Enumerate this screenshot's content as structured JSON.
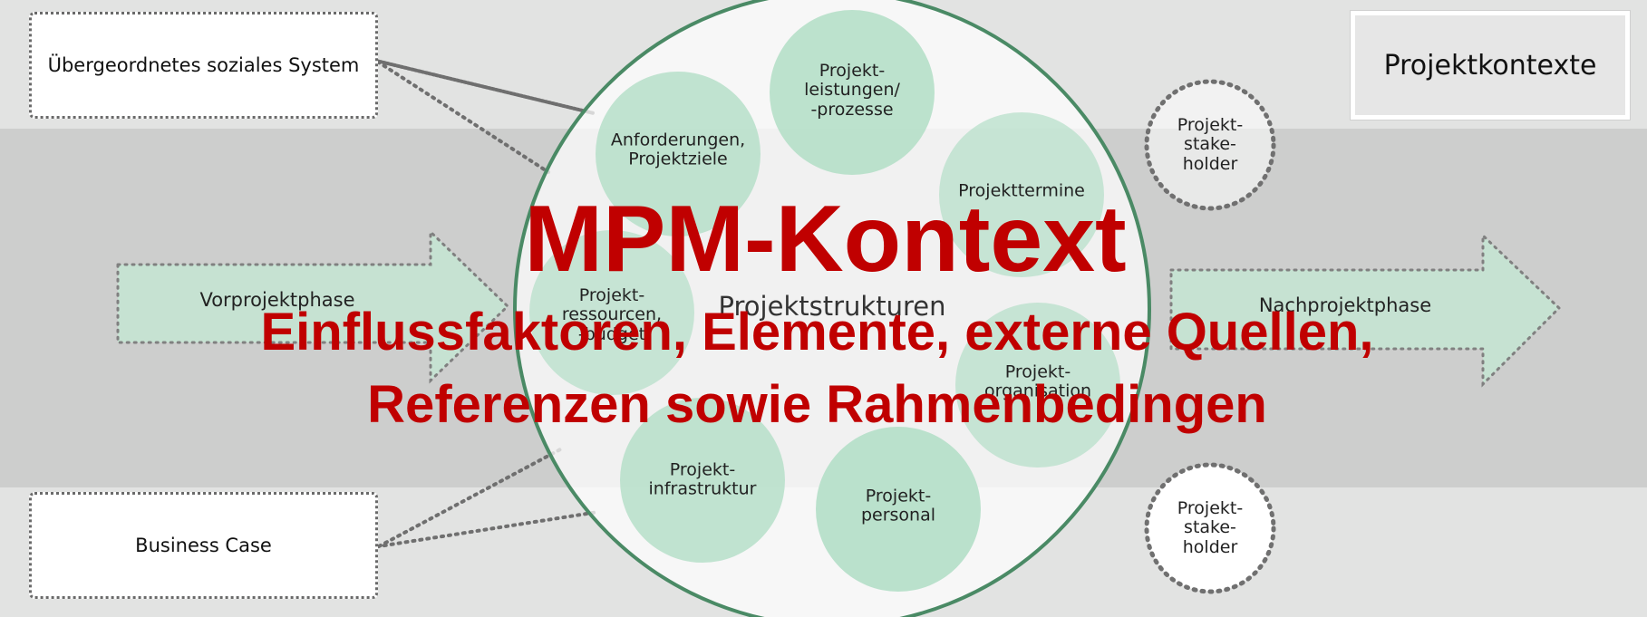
{
  "title": "MPM-Kontext",
  "subtitle_line1": "Einflussfaktoren, Elemente, externe Quellen,",
  "subtitle_line2": "Referenzen sowie Rahmenbedingen",
  "center_label": "Projektstrukturen",
  "context_box": "Projektkontexte",
  "left_top_box": "Übergeordnetes soziales System",
  "left_bottom_box": "Business Case",
  "phases": {
    "pre": "Vorprojektphase",
    "post": "Nachprojektphase"
  },
  "elements": {
    "leistungen": [
      "Projekt-",
      "leistungen/",
      "-prozesse"
    ],
    "anforderungen": [
      "Anforderungen,",
      "Projektziele"
    ],
    "termine": [
      "Projekttermine"
    ],
    "ressourcen": [
      "Projekt-",
      "ressourcen,",
      "-budget"
    ],
    "organisation": [
      "Projekt-",
      "organisation"
    ],
    "infrastruktur": [
      "Projekt-",
      "infrastruktur"
    ],
    "personal": [
      "Projekt-",
      "personal"
    ]
  },
  "stakeholder_top": [
    "Projekt-",
    "stake-",
    "holder"
  ],
  "stakeholder_bottom": [
    "Projekt-",
    "stake-",
    "holder"
  ],
  "colors": {
    "title_red": "#c00000",
    "circle_green": "#b6dfc9",
    "ring_green": "#4a8a65",
    "band_gray": "#cdcecd",
    "background": "#e2e3e2"
  }
}
